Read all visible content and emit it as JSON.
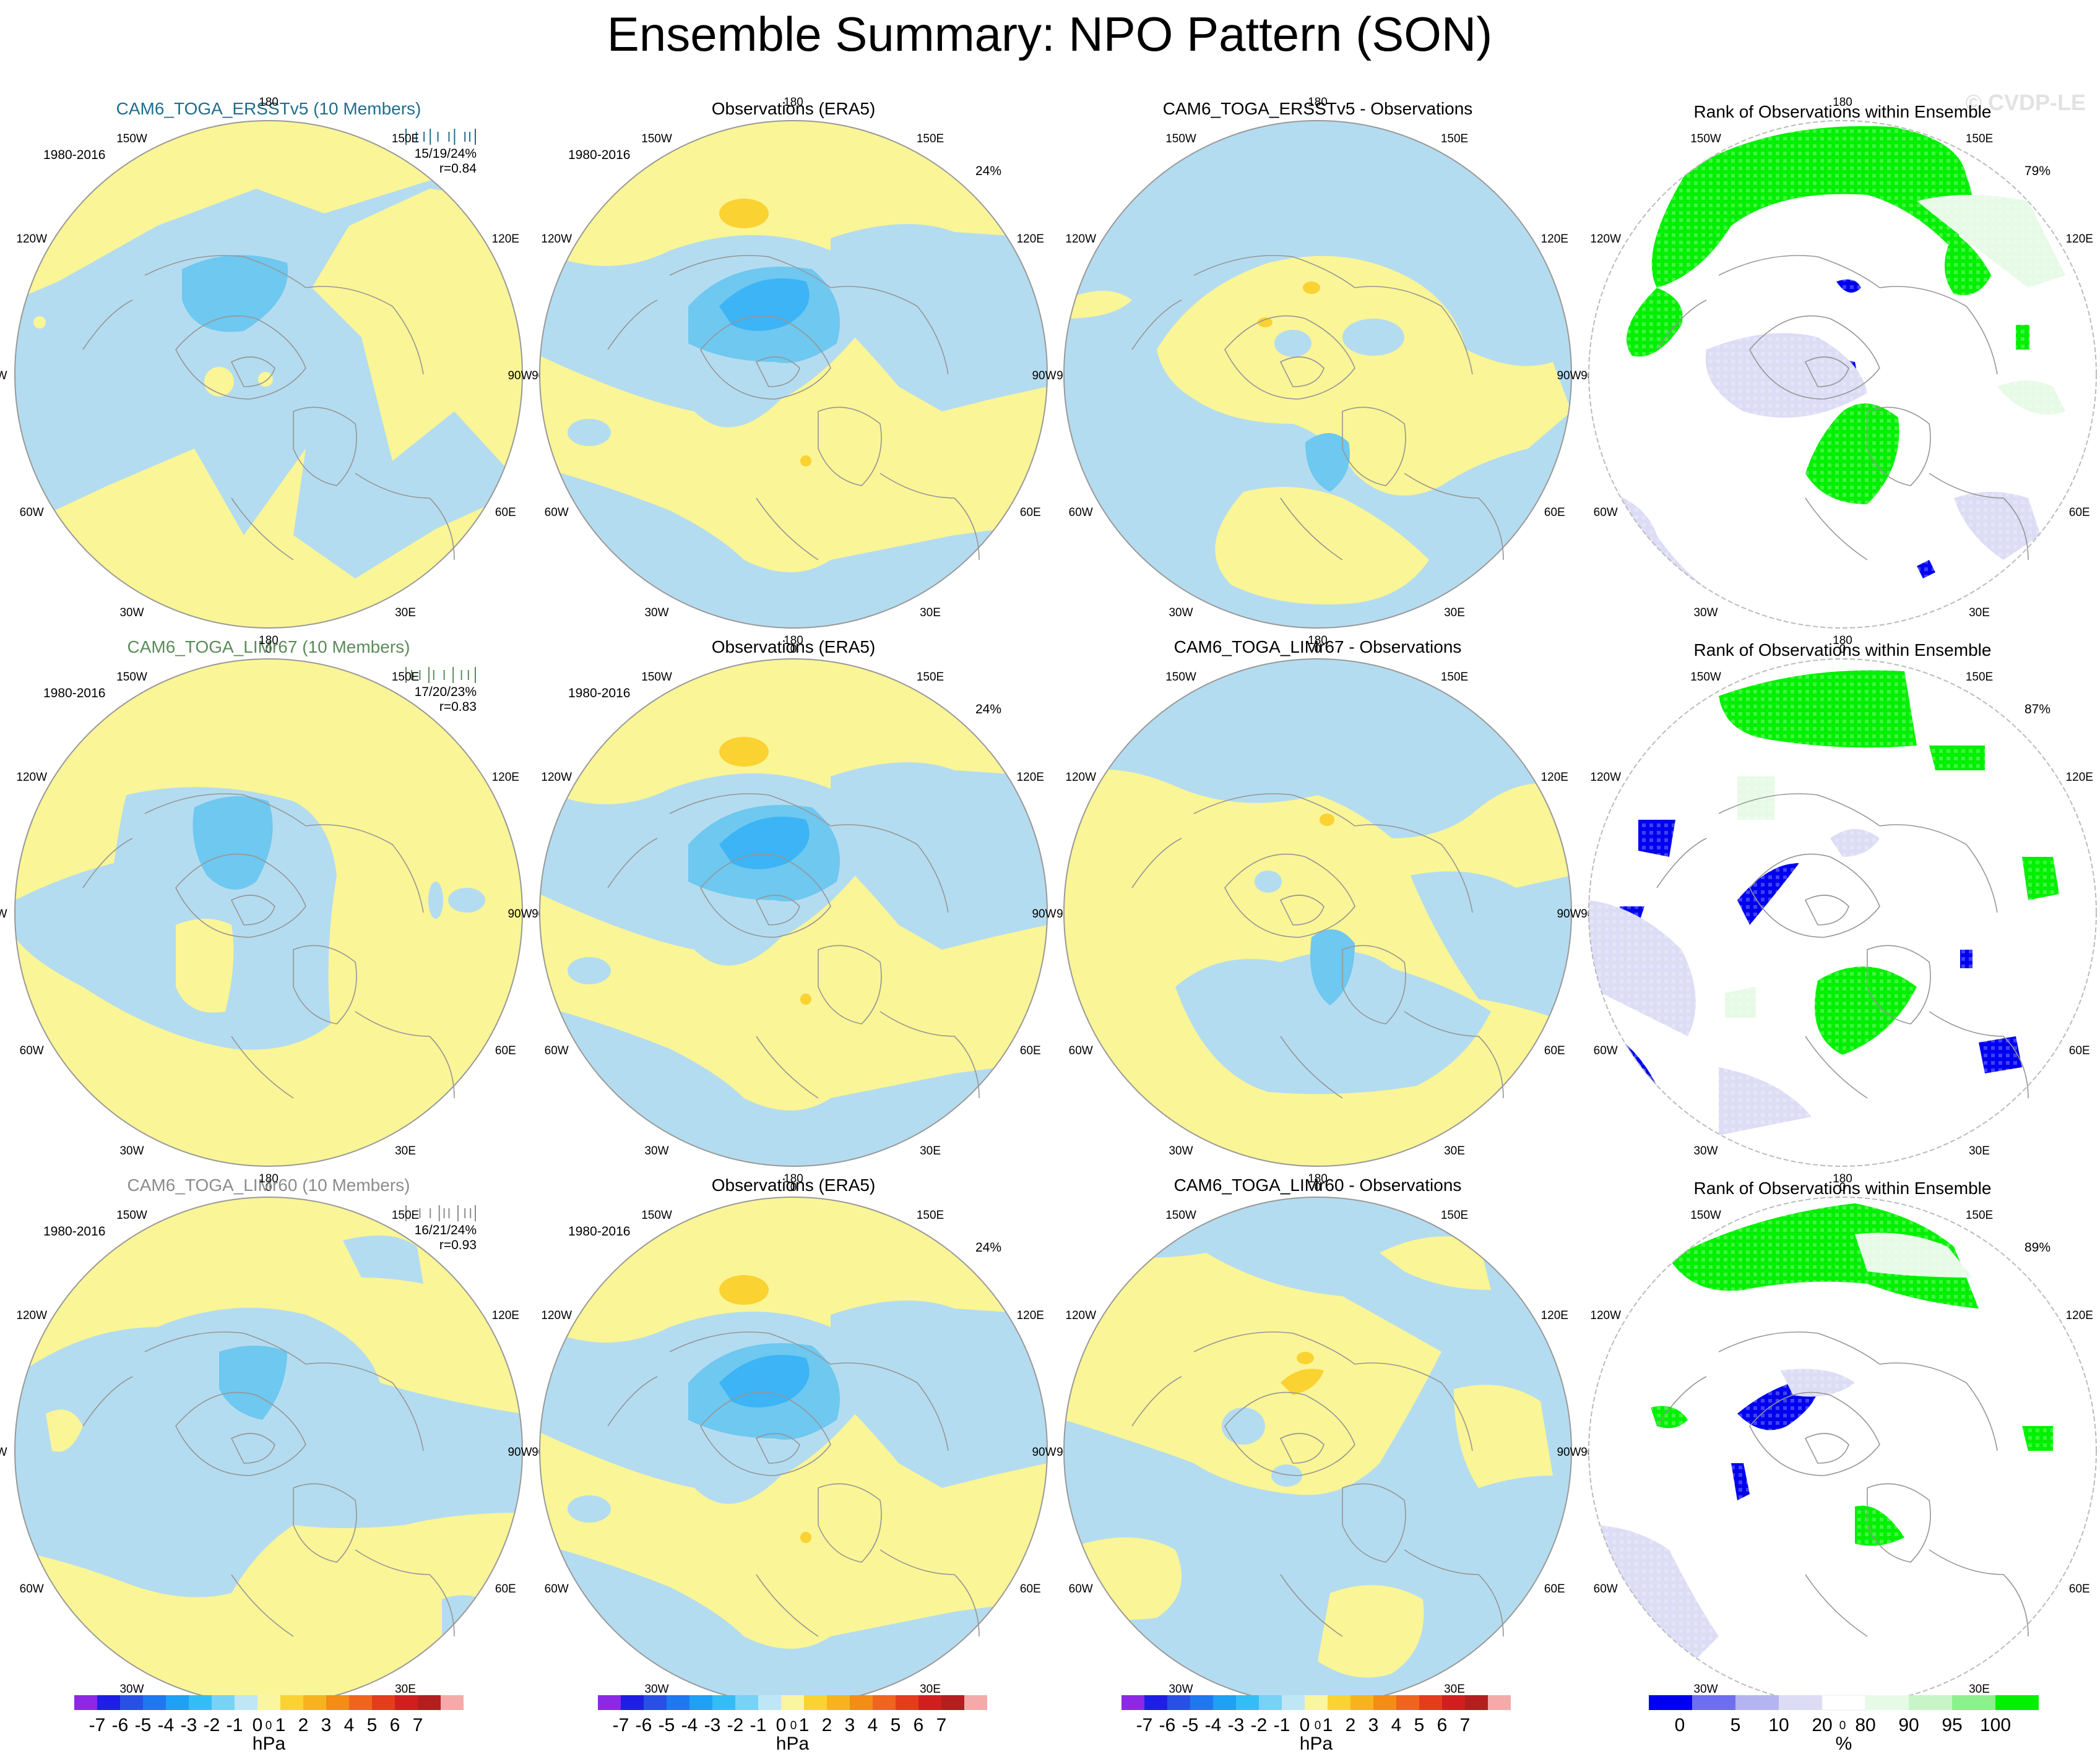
{
  "title": "Ensemble Summary: NPO Pattern (SON)",
  "watermark": "© CVDP-LE",
  "period": "1980-2016",
  "lon_labels": [
    "180",
    "150E",
    "120E",
    "90E",
    "60E",
    "30E",
    "0",
    "30W",
    "60W",
    "90W",
    "120W",
    "150W"
  ],
  "colors": {
    "neg4": "#1E90FF",
    "neg3": "#3CB4F5",
    "neg2": "#6EC8F0",
    "neg1": "#B4DCF0",
    "pos1": "#FAF596",
    "pos2": "#FAD232",
    "pos3": "#F5B41E",
    "land": "#969696",
    "rank_low": "#0000F0",
    "rank_mid": "#BEBEF0",
    "rank_soft": "#DCDCF5",
    "rank_lt80": "#E6FAE6",
    "rank_90": "#C8F5C8",
    "rank_high": "#00F000"
  },
  "rows": [
    {
      "ens_label": "CAM6_TOGA_ERSSTv5 (10 Members)",
      "ens_color": "#1F6E8C",
      "stats": "15/19/24%",
      "corr": "r=0.84",
      "spread_ticks": [
        0.0,
        0.15,
        0.26,
        0.35,
        0.46,
        0.62,
        0.7,
        0.85,
        0.92,
        1.0
      ],
      "obs_label": "Observations (ERA5)",
      "obs_pct": "24%",
      "diff_label": "CAM6_TOGA_ERSSTv5 - Observations",
      "rank_label": "Rank of Observations within Ensemble",
      "rank_pct": "79%"
    },
    {
      "ens_label": "CAM6_TOGA_LIMr67 (10 Members)",
      "ens_color": "#5B8C5A",
      "stats": "17/20/23%",
      "corr": "r=0.83",
      "spread_ticks": [
        0.0,
        0.08,
        0.2,
        0.33,
        0.4,
        0.55,
        0.68,
        0.8,
        0.9,
        1.0
      ],
      "obs_label": "Observations (ERA5)",
      "obs_pct": "24%",
      "diff_label": "CAM6_TOGA_LIMr67 - Observations",
      "rank_label": "Rank of Observations within Ensemble",
      "rank_pct": "87%"
    },
    {
      "ens_label": "CAM6_TOGA_LIMr60 (10 Members)",
      "ens_color": "#8C8C8C",
      "stats": "16/21/24%",
      "corr": "r=0.93",
      "spread_ticks": [
        0.0,
        0.2,
        0.35,
        0.48,
        0.55,
        0.62,
        0.75,
        0.85,
        0.93,
        1.0
      ],
      "obs_label": "Observations (ERA5)",
      "obs_pct": "24%",
      "diff_label": "CAM6_TOGA_LIMr60 - Observations",
      "rank_label": "Rank of Observations within Ensemble",
      "rank_pct": "89%"
    }
  ],
  "colorbars": {
    "hpa": {
      "colors": [
        "#8C28E6",
        "#1E1EE6",
        "#2850E6",
        "#1E78F0",
        "#1EA0F5",
        "#32BEF5",
        "#78D2F5",
        "#BEE6F5",
        "#FAF5A0",
        "#FAD232",
        "#F5B41E",
        "#F58C14",
        "#F0641E",
        "#E63C1E",
        "#D21E1E",
        "#B41E1E",
        "#F5AAAA"
      ],
      "labels": [
        "-7",
        "-6",
        "-5",
        "-4",
        "-3",
        "-2",
        "-1",
        "0",
        "1",
        "2",
        "3",
        "4",
        "5",
        "6",
        "7"
      ],
      "units": "hPa"
    },
    "rank": {
      "colors": [
        "#0000F0",
        "#6E6EF0",
        "#B4B4F0",
        "#DCDCF5",
        "#FFFFFF",
        "#E6FAE6",
        "#C8F5C8",
        "#8CF08C",
        "#00F000"
      ],
      "labels": [
        "0",
        "5",
        "10",
        "20",
        "80",
        "90",
        "95",
        "100"
      ],
      "units": "%"
    }
  }
}
